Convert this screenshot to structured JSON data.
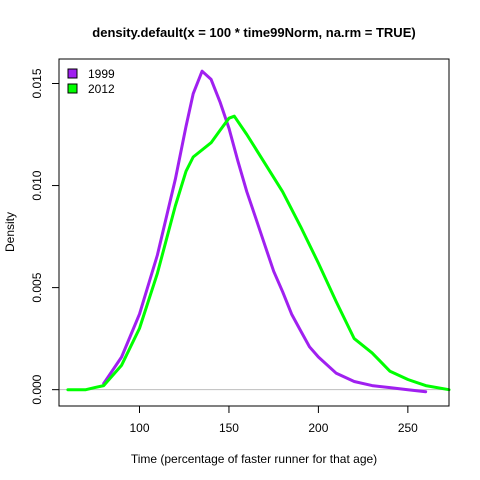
{
  "chart_data": {
    "type": "line",
    "title": "density.default(x = 100 * time99Norm, na.rm = TRUE)",
    "xlabel": "Time (percentage of faster runner for that age)",
    "ylabel": "Density",
    "xlim": [
      55,
      273
    ],
    "ylim": [
      -0.0008,
      0.0162
    ],
    "x_ticks": [
      "100",
      "150",
      "200",
      "250"
    ],
    "x_tick_values": [
      100,
      150,
      200,
      250
    ],
    "y_ticks": [
      "0.000",
      "0.005",
      "0.010",
      "0.015"
    ],
    "y_tick_values": [
      0,
      0.005,
      0.01,
      0.015
    ],
    "baseline": 0,
    "baseline_color": "#bebebe",
    "grid": false,
    "legend_position": "top-left",
    "series": [
      {
        "name": "1999",
        "color": "#a020f0",
        "x": [
          80,
          90,
          100,
          110,
          120,
          126,
          130,
          135,
          140,
          145,
          150,
          155,
          160,
          165,
          170,
          175,
          180,
          185,
          190,
          195,
          200,
          210,
          220,
          230,
          240,
          250,
          260
        ],
        "y": [
          0.0003,
          0.0016,
          0.0037,
          0.0066,
          0.0103,
          0.0129,
          0.0145,
          0.0156,
          0.0152,
          0.0141,
          0.0128,
          0.0112,
          0.0097,
          0.0084,
          0.0071,
          0.0058,
          0.0048,
          0.0037,
          0.0029,
          0.0021,
          0.0016,
          0.0008,
          0.0004,
          0.0002,
          0.0001,
          0.0,
          -0.0001
        ]
      },
      {
        "name": "2012",
        "color": "#00ff00",
        "x": [
          60,
          70,
          75,
          80,
          90,
          100,
          110,
          120,
          126,
          130,
          140,
          145,
          150,
          153,
          160,
          170,
          180,
          190,
          200,
          210,
          220,
          230,
          240,
          250,
          260,
          273
        ],
        "y": [
          0.0,
          0.0,
          0.0001,
          0.0002,
          0.0012,
          0.003,
          0.0057,
          0.009,
          0.0107,
          0.0114,
          0.0121,
          0.0127,
          0.0133,
          0.0134,
          0.0125,
          0.0111,
          0.0097,
          0.008,
          0.0062,
          0.0043,
          0.0025,
          0.0018,
          0.0009,
          0.0005,
          0.0002,
          0.0
        ]
      }
    ]
  }
}
